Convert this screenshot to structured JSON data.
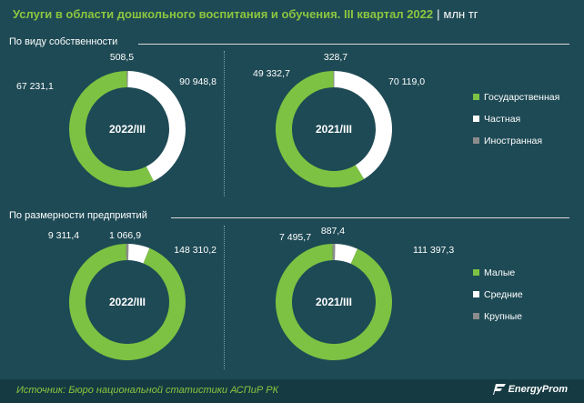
{
  "title": "Услуги в области дошкольного воспитания и обучения. III квартал 2022",
  "unit": "млн тг",
  "source": "Источник: Бюро национальной статистики АСПиР РК",
  "logo_text": "EnergyProm",
  "colors": {
    "green": "#7dc242",
    "white": "#ffffff",
    "gray": "#8c8c8c",
    "background": "#1e4a55"
  },
  "sections": [
    {
      "label": "По виду собственности",
      "legend": [
        "Государственная",
        "Частная",
        "Иностранная"
      ]
    },
    {
      "label": "По размерности предприятий",
      "legend": [
        "Малые",
        "Средние",
        "Крупные"
      ]
    }
  ],
  "chart_data": [
    {
      "type": "pie",
      "section": "По виду собственности",
      "center_label": "2022/III",
      "categories": [
        "Государственная",
        "Частная",
        "Иностранная"
      ],
      "values": [
        90948.8,
        67231.1,
        508.5
      ],
      "value_labels": [
        "90 948,8",
        "67 231,1",
        "508,5"
      ]
    },
    {
      "type": "pie",
      "section": "По виду собственности",
      "center_label": "2021/III",
      "categories": [
        "Государственная",
        "Частная",
        "Иностранная"
      ],
      "values": [
        70119.0,
        49332.7,
        328.7
      ],
      "value_labels": [
        "70 119,0",
        "49 332,7",
        "328,7"
      ]
    },
    {
      "type": "pie",
      "section": "По размерности предприятий",
      "center_label": "2022/III",
      "categories": [
        "Малые",
        "Средние",
        "Крупные"
      ],
      "values": [
        148310.2,
        9311.4,
        1066.9
      ],
      "value_labels": [
        "148 310,2",
        "9 311,4",
        "1 066,9"
      ]
    },
    {
      "type": "pie",
      "section": "По размерности предприятий",
      "center_label": "2021/III",
      "categories": [
        "Малые",
        "Средние",
        "Крупные"
      ],
      "values": [
        111397.3,
        7495.7,
        887.4
      ],
      "value_labels": [
        "111 397,3",
        "7 495,7",
        "887,4"
      ]
    }
  ]
}
